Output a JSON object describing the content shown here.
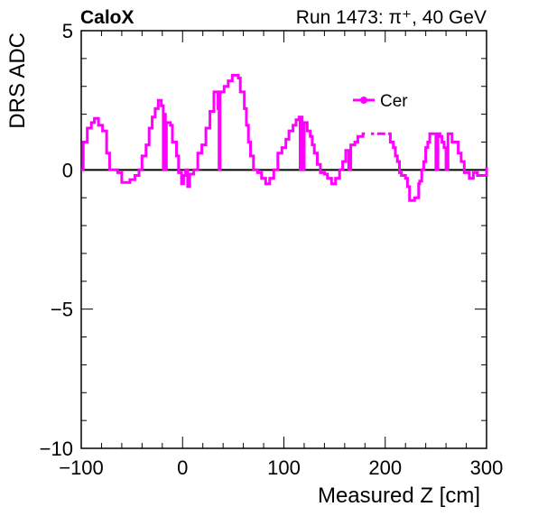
{
  "header": {
    "experiment": "CaloX",
    "run_info": "Run 1473:   π⁺, 40 GeV"
  },
  "chart_data": {
    "type": "line",
    "xlabel": "Measured Z [cm]",
    "ylabel": "DRS ADC",
    "xlim": [
      -100,
      300
    ],
    "ylim": [
      -10,
      5
    ],
    "x_ticks": [
      -100,
      0,
      100,
      200,
      300
    ],
    "y_ticks": [
      -10,
      -5,
      0,
      5
    ],
    "x_tick_labels": [
      "−100",
      "0",
      "100",
      "200",
      "300"
    ],
    "y_tick_labels": [
      "−10",
      "−5",
      "0",
      "5"
    ],
    "grid": false,
    "legend_position": "top-right",
    "zero_line": true,
    "series": [
      {
        "name": "Cer",
        "color": "#ff00ff",
        "style": "step",
        "points": [
          [
            -100,
            0.0
          ],
          [
            -98,
            1.0
          ],
          [
            -94,
            1.5
          ],
          [
            -90,
            1.7
          ],
          [
            -87,
            1.85
          ],
          [
            -83,
            1.6
          ],
          [
            -79,
            1.4
          ],
          [
            -75,
            0.6
          ],
          [
            -72,
            0.0
          ],
          [
            -64,
            -0.1
          ],
          [
            -60,
            -0.45
          ],
          [
            -52,
            -0.35
          ],
          [
            -47,
            -0.2
          ],
          [
            -43,
            0.0
          ],
          [
            -40,
            0.5
          ],
          [
            -36,
            0.9
          ],
          [
            -33,
            1.5
          ],
          [
            -30,
            1.9
          ],
          [
            -27,
            2.2
          ],
          [
            -24,
            2.5
          ],
          [
            -21,
            2.3
          ],
          [
            -19,
            0.0
          ],
          [
            -18,
            2.0
          ],
          [
            -17,
            0.0
          ],
          [
            -16,
            1.7
          ],
          [
            -12,
            1.6
          ],
          [
            -10,
            1.0
          ],
          [
            -6,
            0.5
          ],
          [
            -4,
            -0.1
          ],
          [
            -1,
            -0.5
          ],
          [
            1,
            -0.2
          ],
          [
            3,
            0.0
          ],
          [
            5,
            -0.6
          ],
          [
            7,
            -0.15
          ],
          [
            11,
            0.0
          ],
          [
            15,
            0.6
          ],
          [
            19,
            0.9
          ],
          [
            23,
            1.5
          ],
          [
            27,
            2.1
          ],
          [
            31,
            2.8
          ],
          [
            35,
            2.2
          ],
          [
            36,
            0.0
          ],
          [
            37,
            2.8
          ],
          [
            41,
            3.0
          ],
          [
            45,
            3.2
          ],
          [
            49,
            3.4
          ],
          [
            55,
            3.3
          ],
          [
            57,
            2.8
          ],
          [
            61,
            2.2
          ],
          [
            63,
            1.6
          ],
          [
            65,
            1.0
          ],
          [
            67,
            0.5
          ],
          [
            70,
            0.0
          ],
          [
            74,
            -0.1
          ],
          [
            78,
            -0.3
          ],
          [
            82,
            -0.5
          ],
          [
            86,
            -0.3
          ],
          [
            90,
            0.0
          ],
          [
            94,
            0.6
          ],
          [
            98,
            0.8
          ],
          [
            102,
            1.1
          ],
          [
            105,
            1.4
          ],
          [
            109,
            1.6
          ],
          [
            112,
            1.8
          ],
          [
            115,
            1.9
          ],
          [
            116,
            0.0
          ],
          [
            117,
            1.9
          ],
          [
            118,
            1.4
          ],
          [
            119,
            0.0
          ],
          [
            120,
            1.7
          ],
          [
            123,
            1.4
          ],
          [
            126,
            1.2
          ],
          [
            128,
            0.9
          ],
          [
            130,
            0.6
          ],
          [
            133,
            0.2
          ],
          [
            136,
            -0.1
          ],
          [
            140,
            -0.15
          ],
          [
            143,
            -0.3
          ],
          [
            147,
            -0.5
          ],
          [
            151,
            -0.3
          ],
          [
            155,
            0.0
          ],
          [
            158,
            0.3
          ],
          [
            161,
            0.7
          ],
          [
            164,
            0.0
          ],
          [
            166,
            0.9
          ],
          [
            170,
            1.0
          ],
          [
            173,
            1.2
          ],
          [
            178,
            1.3
          ],
          [
            180,
            null
          ],
          [
            186,
            1.3
          ],
          [
            189,
            null
          ],
          [
            192,
            1.3
          ],
          [
            200,
            null
          ],
          [
            203,
            1.3
          ],
          [
            205,
            1.0
          ],
          [
            208,
            0.8
          ],
          [
            210,
            0.5
          ],
          [
            212,
            0.3
          ],
          [
            214,
            -0.1
          ],
          [
            216,
            -0.2
          ],
          [
            220,
            -0.3
          ],
          [
            222,
            -0.6
          ],
          [
            224,
            -1.1
          ],
          [
            229,
            -1.0
          ],
          [
            232,
            -1.0
          ],
          [
            233,
            -0.5
          ],
          [
            234,
            -0.4
          ],
          [
            236,
            0.0
          ],
          [
            238,
            0.3
          ],
          [
            240,
            0.8
          ],
          [
            242,
            1.0
          ],
          [
            244,
            1.3
          ],
          [
            247,
            1.3
          ],
          [
            250,
            0.0
          ],
          [
            252,
            1.3
          ],
          [
            254,
            1.2
          ],
          [
            256,
            1.0
          ],
          [
            258,
            0.8
          ],
          [
            260,
            0.0
          ],
          [
            262,
            1.3
          ],
          [
            266,
            1.0
          ],
          [
            270,
            1.0
          ],
          [
            272,
            0.6
          ],
          [
            275,
            0.3
          ],
          [
            278,
            -0.1
          ],
          [
            283,
            -0.3
          ],
          [
            287,
            -0.1
          ],
          [
            291,
            -0.2
          ],
          [
            300,
            0.1
          ]
        ]
      }
    ]
  }
}
